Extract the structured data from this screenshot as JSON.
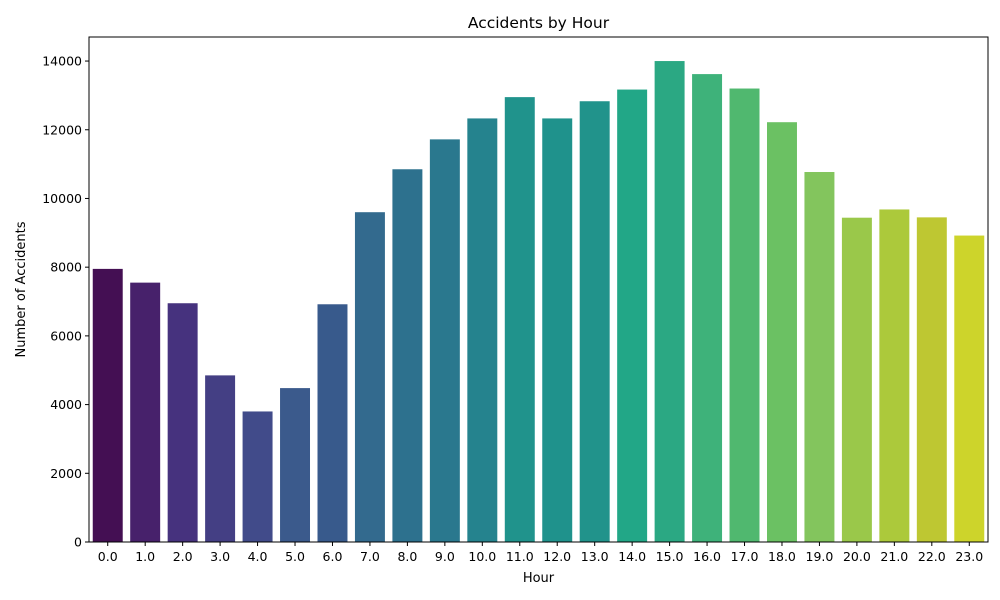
{
  "chart_data": {
    "type": "bar",
    "title": "Accidents by Hour",
    "xlabel": "Hour",
    "ylabel": "Number of Accidents",
    "categories": [
      "0.0",
      "1.0",
      "2.0",
      "3.0",
      "4.0",
      "5.0",
      "6.0",
      "7.0",
      "8.0",
      "9.0",
      "10.0",
      "11.0",
      "12.0",
      "13.0",
      "14.0",
      "15.0",
      "16.0",
      "17.0",
      "18.0",
      "19.0",
      "20.0",
      "21.0",
      "22.0",
      "23.0"
    ],
    "values": [
      7950,
      7550,
      6950,
      4850,
      3800,
      4480,
      6920,
      9600,
      10850,
      11720,
      12330,
      12950,
      12330,
      12830,
      13170,
      14000,
      13620,
      13200,
      12220,
      10770,
      9440,
      9680,
      9450,
      8920
    ],
    "colors": [
      "#440f53",
      "#47216b",
      "#46327e",
      "#443f84",
      "#414b8a",
      "#3b5a8c",
      "#385a8c",
      "#336a8e",
      "#2d718e",
      "#2a788e",
      "#25838e",
      "#20938c",
      "#1f928c",
      "#21938b",
      "#22a787",
      "#2ba883",
      "#3eb27a",
      "#50b86f",
      "#6bc163",
      "#83c55d",
      "#9ac84a",
      "#acc93b",
      "#bec732",
      "#cdd42b"
    ],
    "yticks": [
      0,
      2000,
      4000,
      6000,
      8000,
      10000,
      12000,
      14000
    ],
    "ylim": [
      0,
      14700
    ],
    "grid": false,
    "legend": "none"
  }
}
